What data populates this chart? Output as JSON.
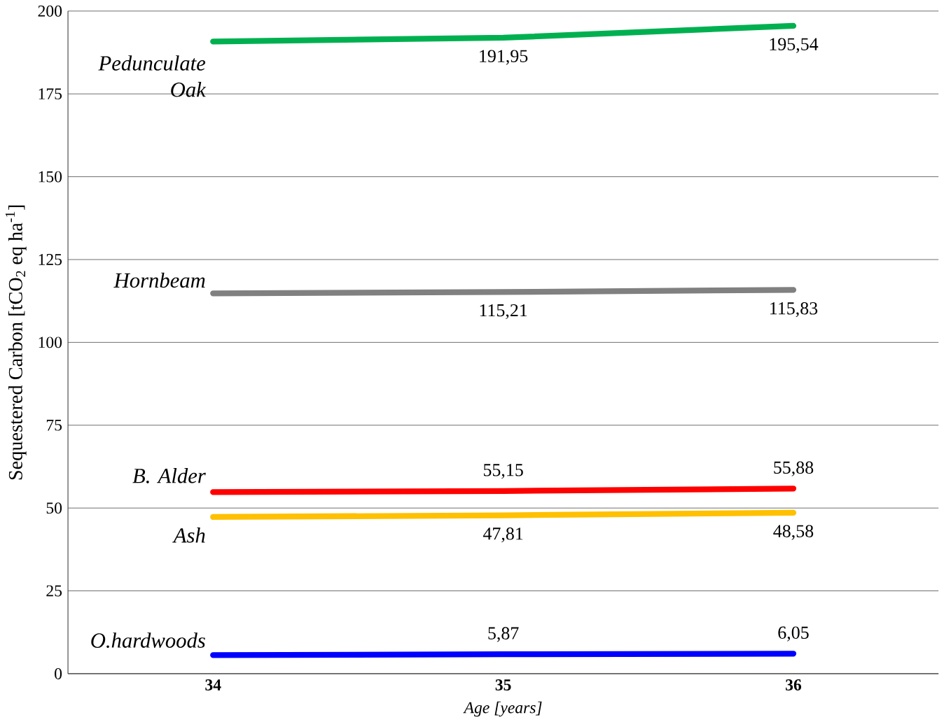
{
  "chart_data": {
    "type": "line",
    "xlabel": "Age [years]",
    "ylabel": "Sequestered  Carbon  [tCO$_{2}$ eq ha$^{-1}$]",
    "categories": [
      "34",
      "35",
      "36"
    ],
    "ylim": [
      0,
      200
    ],
    "yticks": [
      0,
      25,
      50,
      75,
      100,
      125,
      150,
      175,
      200
    ],
    "grid": "y",
    "legend": false,
    "line_style": "solid",
    "series": [
      {
        "name": "Pedunculate Oak",
        "color": "#00b050",
        "values": [
          190.8,
          191.95,
          195.54
        ],
        "value_labels": [
          null,
          "191,95",
          "195,54"
        ]
      },
      {
        "name": "Hornbeam",
        "color": "#808080",
        "values": [
          114.8,
          115.21,
          115.83
        ],
        "value_labels": [
          null,
          "115,21",
          "115,83"
        ]
      },
      {
        "name": "B. Alder",
        "color": "#ff0000",
        "values": [
          54.8,
          55.15,
          55.88
        ],
        "value_labels": [
          null,
          "55,15",
          "55,88"
        ]
      },
      {
        "name": "Ash",
        "color": "#ffc000",
        "values": [
          47.3,
          47.81,
          48.58
        ],
        "value_labels": [
          null,
          "47,81",
          "48,58"
        ]
      },
      {
        "name": "O.hardwoods",
        "color": "#0000ff",
        "values": [
          5.6,
          5.87,
          6.05
        ],
        "value_labels": [
          null,
          "5,87",
          "6,05"
        ]
      }
    ]
  }
}
